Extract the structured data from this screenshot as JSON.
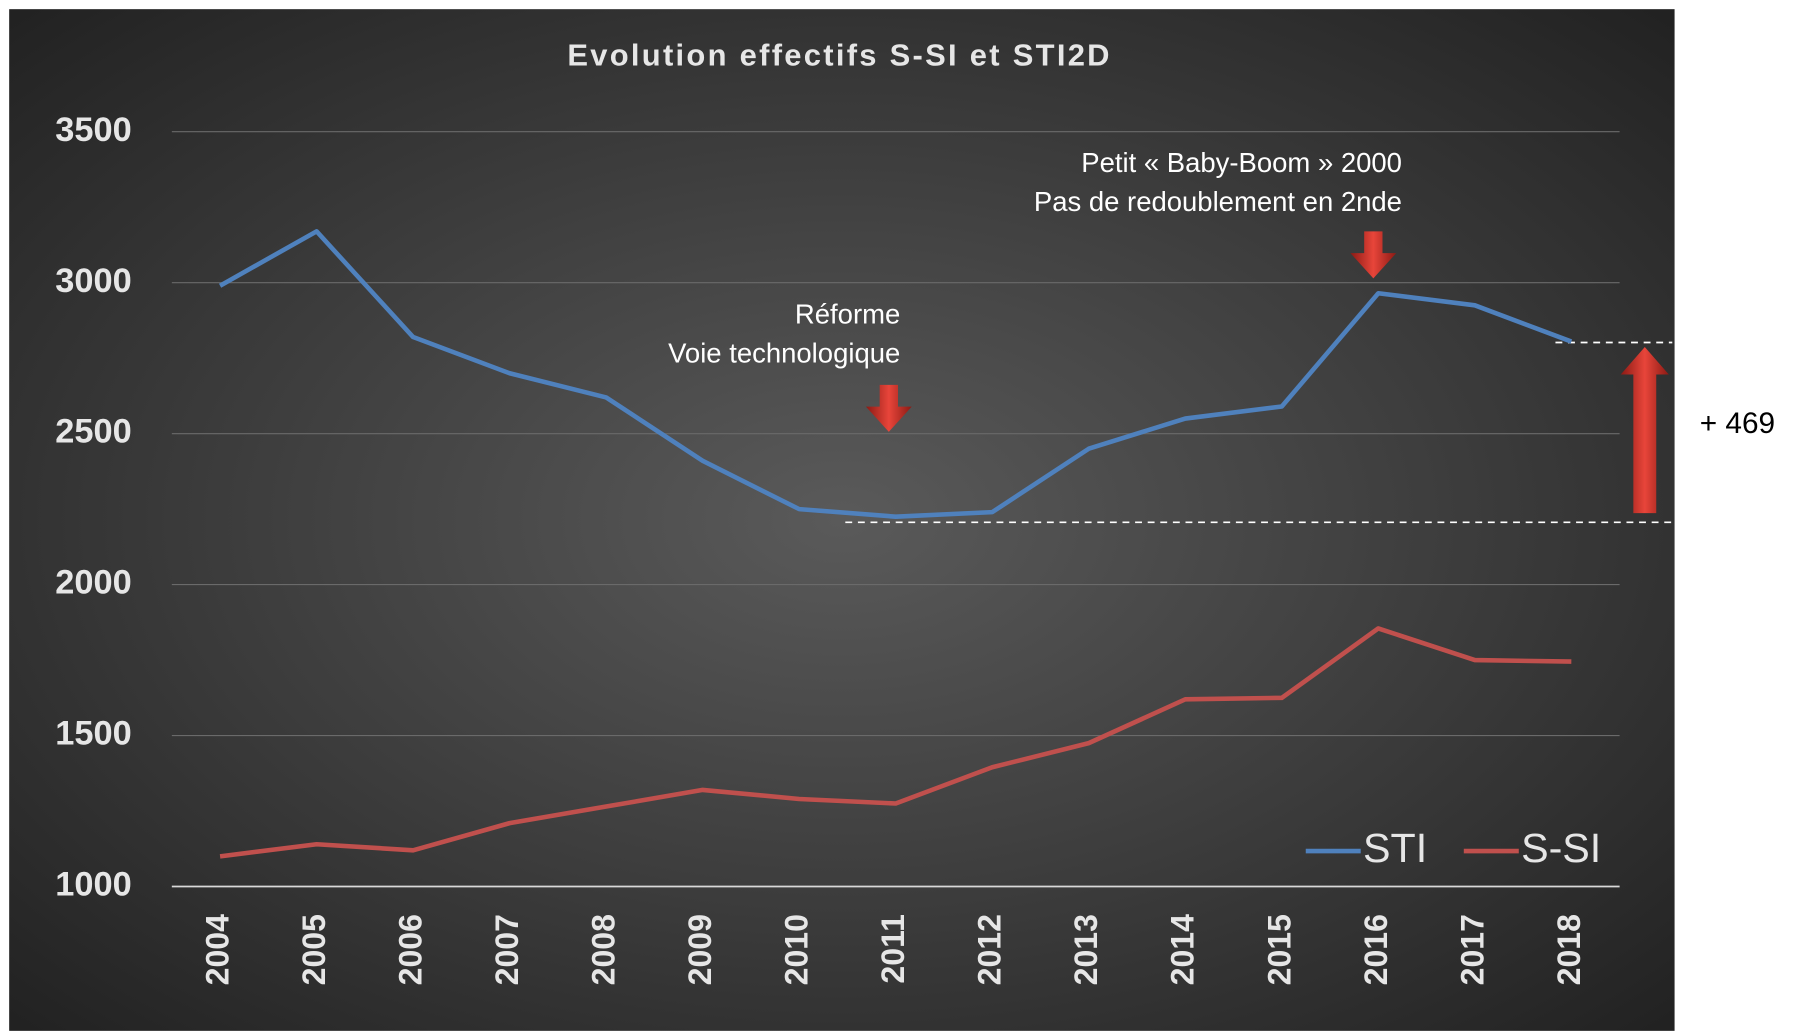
{
  "chart_data": {
    "type": "line",
    "title": "Evolution effectifs S-SI et STI2D",
    "categories": [
      "2004",
      "2005",
      "2006",
      "2007",
      "2008",
      "2009",
      "2010",
      "2011",
      "2012",
      "2013",
      "2014",
      "2015",
      "2016",
      "2017",
      "2018"
    ],
    "series": [
      {
        "name": "STI",
        "color": "#4f81bd",
        "values": [
          2990,
          3170,
          2820,
          2700,
          2620,
          2410,
          2250,
          2225,
          2240,
          2450,
          2550,
          2590,
          2965,
          2925,
          2805
        ]
      },
      {
        "name": "S-SI",
        "color": "#c0504d",
        "values": [
          1100,
          1140,
          1120,
          1210,
          1265,
          1320,
          1290,
          1275,
          1395,
          1475,
          1620,
          1625,
          1855,
          1750,
          1745
        ]
      }
    ],
    "ylim": [
      1000,
      3500
    ],
    "yticks": [
      1000,
      1500,
      2000,
      2500,
      3000,
      3500
    ],
    "grid": true,
    "legend": "lower right",
    "annotations": [
      "Réforme",
      "Voie technologique",
      "Petit « Baby-Boom » 2000",
      "Pas de redoublement en 2nde",
      "+ 469"
    ]
  }
}
